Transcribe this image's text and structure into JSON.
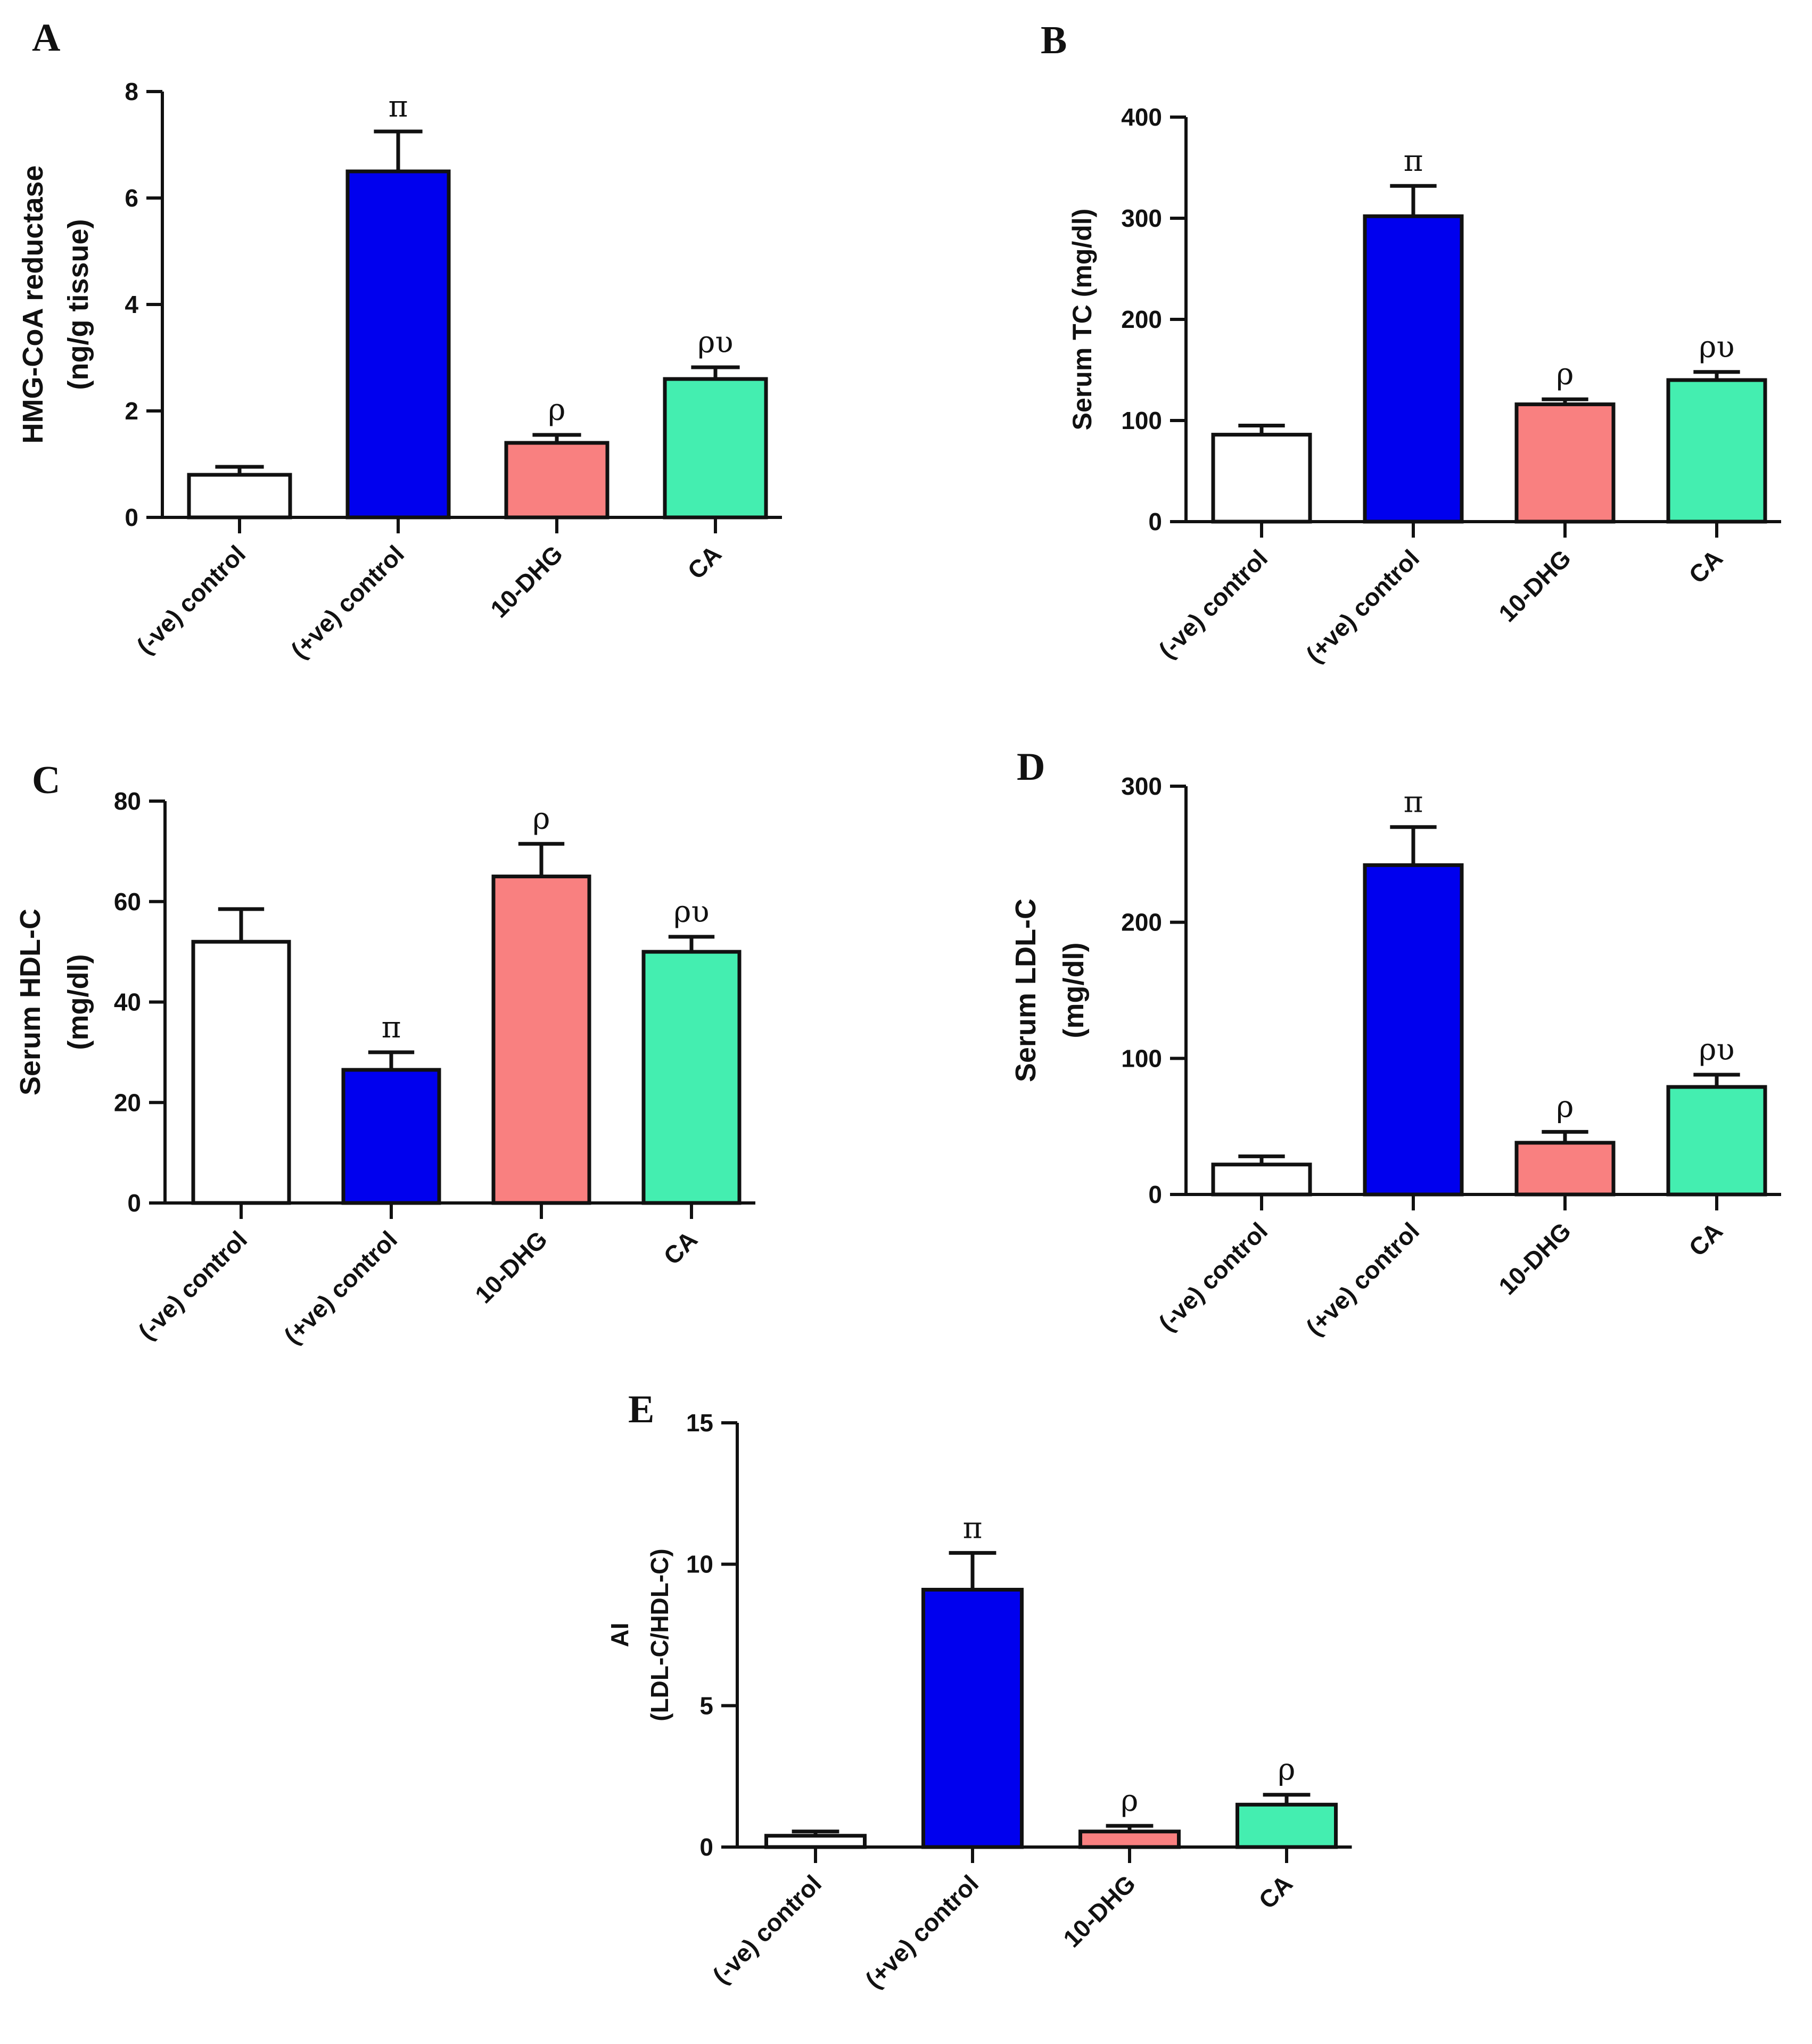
{
  "figure_title": "",
  "chart_data": [
    {
      "panel": "A",
      "type": "bar",
      "categories": [
        "(-ve) control",
        "(+ve) control",
        "10-DHG",
        "CA"
      ],
      "values": [
        0.8,
        6.5,
        1.4,
        2.6
      ],
      "errors": [
        0.15,
        0.75,
        0.15,
        0.22
      ],
      "significance": [
        "",
        "π",
        "ρ",
        "ρυ"
      ],
      "colors": [
        "#ffffff",
        "#0000ee",
        "#f98080",
        "#44eeb0"
      ],
      "ylabel": [
        "HMG-CoA reductase",
        "(ng/g tissue)"
      ],
      "xlabel": "",
      "ylim": [
        0,
        8
      ],
      "yticks": [
        0,
        2,
        4,
        6,
        8
      ],
      "grid": false
    },
    {
      "panel": "B",
      "type": "bar",
      "categories": [
        "(-ve) control",
        "(+ve) control",
        "10-DHG",
        "CA"
      ],
      "values": [
        86,
        302,
        116,
        140
      ],
      "errors": [
        9,
        30,
        5,
        8
      ],
      "significance": [
        "",
        "π",
        "ρ",
        "ρυ"
      ],
      "colors": [
        "#ffffff",
        "#0000ee",
        "#f98080",
        "#44eeb0"
      ],
      "ylabel": [
        "Serum TC (mg/dl)"
      ],
      "xlabel": "",
      "ylim": [
        0,
        400
      ],
      "yticks": [
        0,
        100,
        200,
        300,
        400
      ],
      "grid": false
    },
    {
      "panel": "C",
      "type": "bar",
      "categories": [
        "(-ve) control",
        "(+ve) control",
        "10-DHG",
        "CA"
      ],
      "values": [
        52,
        26.5,
        65,
        50
      ],
      "errors": [
        6.5,
        3.5,
        6.5,
        3
      ],
      "significance": [
        "",
        "π",
        "ρ",
        "ρυ"
      ],
      "colors": [
        "#ffffff",
        "#0000ee",
        "#f98080",
        "#44eeb0"
      ],
      "ylabel": [
        "Serum HDL-C",
        "(mg/dl)"
      ],
      "xlabel": "",
      "ylim": [
        0,
        80
      ],
      "yticks": [
        0,
        20,
        40,
        60,
        80
      ],
      "grid": false
    },
    {
      "panel": "D",
      "type": "bar",
      "categories": [
        "(-ve) control",
        "(+ve) control",
        "10-DHG",
        "CA"
      ],
      "values": [
        22,
        242,
        38,
        79
      ],
      "errors": [
        6,
        28,
        8,
        9
      ],
      "significance": [
        "",
        "π",
        "ρ",
        "ρυ"
      ],
      "colors": [
        "#ffffff",
        "#0000ee",
        "#f98080",
        "#44eeb0"
      ],
      "ylabel": [
        "Serum LDL-C",
        "(mg/dl)"
      ],
      "xlabel": "",
      "ylim": [
        0,
        300
      ],
      "yticks": [
        0,
        100,
        200,
        300
      ],
      "grid": false
    },
    {
      "panel": "E",
      "type": "bar",
      "categories": [
        "(-ve) control",
        "(+ve) control",
        "10-DHG",
        "CA"
      ],
      "values": [
        0.4,
        9.1,
        0.55,
        1.5
      ],
      "errors": [
        0.15,
        1.3,
        0.2,
        0.35
      ],
      "significance": [
        "",
        "π",
        "ρ",
        "ρ"
      ],
      "colors": [
        "#ffffff",
        "#0000ee",
        "#f98080",
        "#44eeb0"
      ],
      "ylabel": [
        "AI",
        "(LDL-C/HDL-C)"
      ],
      "xlabel": "",
      "ylim": [
        0,
        15
      ],
      "yticks": [
        0,
        5,
        10,
        15
      ],
      "grid": false
    }
  ]
}
